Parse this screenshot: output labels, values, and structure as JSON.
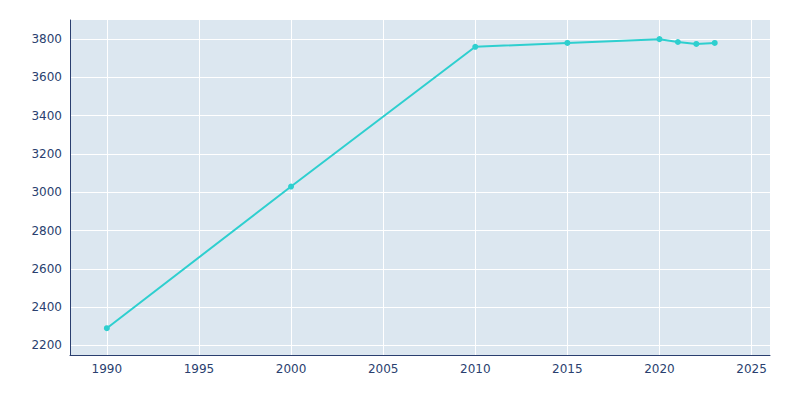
{
  "chart_data": {
    "type": "line",
    "x": [
      1990,
      2000,
      2010,
      2015,
      2020,
      2021,
      2022,
      2023
    ],
    "values": [
      2290,
      3030,
      3760,
      3780,
      3800,
      3785,
      3775,
      3780
    ],
    "color": "#2ecfcf",
    "marker": "circle",
    "xlim": [
      1988,
      2026
    ],
    "ylim": [
      2150,
      3900
    ],
    "xticks": [
      1990,
      1995,
      2000,
      2005,
      2010,
      2015,
      2020,
      2025
    ],
    "yticks": [
      2200,
      2400,
      2600,
      2800,
      3000,
      3200,
      3400,
      3600,
      3800
    ],
    "grid": true
  }
}
